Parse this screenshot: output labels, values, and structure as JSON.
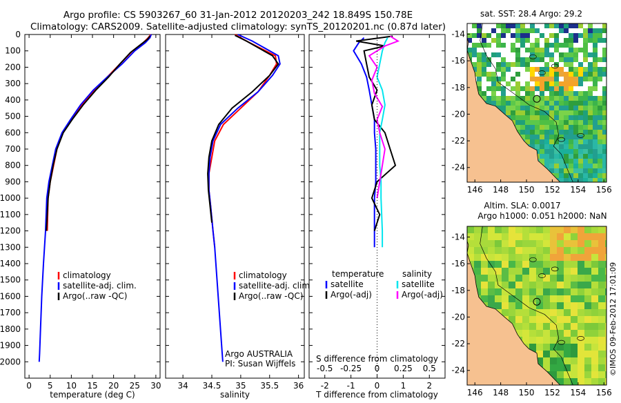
{
  "header": {
    "line1": "Argo profile: CS 5903267_60 31-Jan-2012 20120203_242 18.849S 150.78E",
    "line2": "Climatology: CARS2009. Satellite-adjusted climatology: synTS_20120201.nc (0.87d later)"
  },
  "colors": {
    "climatology": "#ff0000",
    "satellite": "#0000ff",
    "argo": "#000000",
    "sal_satellite": "#00e5ee",
    "sal_argo": "#ff00ff",
    "land": "#f6c190"
  },
  "chart_data": [
    {
      "id": "temperature",
      "type": "line",
      "xlabel": "temperature (deg C)",
      "ylabel": "",
      "xlim": [
        -1,
        31
      ],
      "ylim": [
        2100,
        0
      ],
      "xticks": [
        0,
        5,
        10,
        15,
        20,
        25,
        30
      ],
      "xticklabels": [
        "0",
        "5",
        "10",
        "15",
        "20",
        "25",
        "30"
      ],
      "yticks": [
        0,
        100,
        200,
        300,
        400,
        500,
        600,
        700,
        800,
        900,
        1000,
        1100,
        1200,
        1300,
        1400,
        1500,
        1600,
        1700,
        1800,
        1900,
        2000
      ],
      "yticklabels": [
        "0",
        "100",
        "200",
        "300",
        "400",
        "500",
        "600",
        "700",
        "800",
        "900",
        "1000",
        "1100",
        "1200",
        "1300",
        "1400",
        "1500",
        "1600",
        "1700",
        "1800",
        "1900",
        "2000"
      ],
      "legend": [
        "climatology",
        "satellite-adj. clim.",
        "Argo(..raw -QC)"
      ],
      "series": [
        {
          "name": "climatology",
          "color": "#ff0000",
          "x": [
            28.8,
            28.2,
            27.0,
            24.5,
            21.5,
            18.5,
            15.5,
            12.5,
            10.0,
            8.0,
            6.6,
            5.8,
            5.0,
            4.5,
            4.3
          ],
          "y": [
            0,
            20,
            50,
            100,
            180,
            260,
            340,
            430,
            520,
            600,
            700,
            800,
            900,
            1000,
            1200
          ]
        },
        {
          "name": "satellite-adj. clim.",
          "color": "#0000ff",
          "x": [
            28.9,
            28.6,
            27.5,
            25.0,
            22.0,
            18.5,
            15.2,
            12.2,
            9.8,
            7.8,
            6.3,
            5.5,
            4.7,
            4.2,
            3.9,
            3.4,
            3.0,
            2.7,
            2.5,
            2.4
          ],
          "y": [
            0,
            20,
            50,
            100,
            180,
            260,
            340,
            430,
            520,
            600,
            700,
            800,
            900,
            1000,
            1200,
            1400,
            1600,
            1800,
            1950,
            2000
          ]
        },
        {
          "name": "Argo(..raw -QC)",
          "color": "#000000",
          "x": [
            28.6,
            28.0,
            26.5,
            24.0,
            21.5,
            18.8,
            15.8,
            12.8,
            10.2,
            8.1,
            6.6,
            5.7,
            5.0,
            4.5,
            4.1
          ],
          "y": [
            10,
            30,
            60,
            110,
            180,
            260,
            340,
            430,
            520,
            600,
            700,
            800,
            900,
            1000,
            1200
          ]
        }
      ]
    },
    {
      "id": "salinity",
      "type": "line",
      "xlabel": "salinity",
      "xlim": [
        33.7,
        36.1
      ],
      "ylim": [
        2100,
        0
      ],
      "xticks": [
        34,
        34.5,
        35,
        35.5,
        36
      ],
      "xticklabels": [
        "34",
        "34.5",
        "35",
        "35.5",
        "36"
      ],
      "legend": [
        "climatology",
        "satellite-adj. clim.",
        "Argo(..raw -QC)"
      ],
      "annotation": [
        "Argo AUSTRALIA",
        "PI: Susan Wijffels"
      ],
      "series": [
        {
          "name": "climatology",
          "color": "#ff0000",
          "x": [
            34.9,
            35.1,
            35.6,
            35.62,
            35.5,
            35.3,
            35.0,
            34.7,
            34.55,
            34.5,
            34.45,
            34.45,
            34.48,
            34.52,
            34.55
          ],
          "y": [
            0,
            40,
            130,
            180,
            250,
            350,
            450,
            550,
            650,
            750,
            850,
            950,
            1050,
            1200,
            1300
          ]
        },
        {
          "name": "satellite-adj. clim.",
          "color": "#0000ff",
          "x": [
            34.95,
            35.2,
            35.65,
            35.68,
            35.55,
            35.3,
            34.95,
            34.65,
            34.52,
            34.47,
            34.45,
            34.45,
            34.48,
            34.52,
            34.55,
            34.58,
            34.61,
            34.64,
            34.67,
            34.69
          ],
          "y": [
            0,
            40,
            130,
            180,
            250,
            350,
            450,
            550,
            650,
            750,
            850,
            950,
            1050,
            1200,
            1300,
            1450,
            1600,
            1750,
            1900,
            2000
          ]
        },
        {
          "name": "Argo(..raw -QC)",
          "color": "#000000",
          "x": [
            34.9,
            35.1,
            35.55,
            35.65,
            35.5,
            35.2,
            34.85,
            34.62,
            34.5,
            34.45,
            34.43,
            34.44,
            34.47,
            34.5
          ],
          "y": [
            5,
            40,
            130,
            180,
            250,
            350,
            450,
            550,
            650,
            750,
            850,
            950,
            1050,
            1150
          ]
        }
      ]
    },
    {
      "id": "difference",
      "type": "line",
      "xlabel": "T difference from climatology",
      "xlabel2": "S difference from climatology",
      "xlim": [
        -2.6,
        2.6
      ],
      "ylim": [
        2100,
        0
      ],
      "xticks": [
        -2,
        -1,
        0,
        1,
        2
      ],
      "xticklabels": [
        "-2",
        "-1",
        "0",
        "1",
        "2"
      ],
      "top_tick_values": [
        -2,
        -1,
        0,
        1,
        2
      ],
      "top_ticklabels": [
        "-0.5",
        "-0.25",
        "0",
        "0.25",
        "0.5"
      ],
      "legend_headers": [
        "temperature",
        "salinity"
      ],
      "legend": [
        "satellite",
        "Argo(-adj)",
        "satellite",
        "Argo(-adj)"
      ],
      "zero_line": 0,
      "series": [
        {
          "name": "T satellite",
          "color": "#0000ff",
          "x": [
            -0.5,
            -0.7,
            -0.9,
            -0.6,
            -0.4,
            -0.3,
            -0.2,
            -0.1,
            -0.1,
            -0.05,
            -0.05,
            -0.05,
            -0.1,
            -0.1,
            -0.1,
            -0.1
          ],
          "y": [
            20,
            50,
            100,
            180,
            260,
            340,
            430,
            520,
            600,
            700,
            800,
            900,
            1000,
            1100,
            1200,
            1300
          ]
        },
        {
          "name": "T Argo(-adj)",
          "color": "#000000",
          "x": [
            0.6,
            -0.8,
            0.3,
            -0.5,
            -0.4,
            -0.3,
            0.0,
            -0.2,
            -0.1,
            0.3,
            0.5,
            0.7,
            0.0,
            -0.2,
            0.1,
            0.0,
            -0.1
          ],
          "y": [
            10,
            40,
            70,
            100,
            180,
            260,
            340,
            430,
            520,
            600,
            700,
            800,
            900,
            1000,
            1100,
            1150,
            1200
          ]
        },
        {
          "name": "S satellite",
          "color": "#00e5ee",
          "x": [
            0.4,
            0.3,
            0.2,
            0.1,
            0.0,
            0.2,
            0.3,
            0.2,
            0.1,
            0.1,
            0.1,
            0.15,
            0.15,
            0.2,
            0.2
          ],
          "y": [
            20,
            50,
            100,
            180,
            260,
            340,
            430,
            520,
            600,
            700,
            800,
            900,
            1000,
            1200,
            1300
          ]
        },
        {
          "name": "S Argo(-adj)",
          "color": "#ff00ff",
          "x": [
            0.5,
            0.8,
            0.3,
            -0.3,
            0.0,
            -0.2,
            -0.1,
            0.2,
            0.0,
            0.1,
            0.3,
            0.2,
            0.1,
            0.0
          ],
          "y": [
            10,
            40,
            70,
            130,
            200,
            280,
            360,
            440,
            520,
            600,
            700,
            800,
            900,
            1000
          ]
        }
      ]
    },
    {
      "id": "sst_map",
      "type": "heatmap",
      "title": "sat. SST: 28.4  Argo: 29.2",
      "xticks": [
        146,
        148,
        150,
        152,
        154,
        156
      ],
      "yticks": [
        -14,
        -16,
        -18,
        -20,
        -22,
        -24
      ],
      "xlim": [
        145.4,
        156.2
      ],
      "ylim": [
        -13.2,
        -25.1
      ],
      "argo_position": [
        150.8,
        -18.85
      ]
    },
    {
      "id": "sla_map",
      "type": "heatmap",
      "title": "Altim. SLA: 0.0017",
      "subtitle": "Argo h1000: 0.051 h2000: NaN",
      "xticks": [
        146,
        148,
        150,
        152,
        154,
        156
      ],
      "yticks": [
        -14,
        -16,
        -18,
        -20,
        -22,
        -24
      ],
      "xlim": [
        145.4,
        156.2
      ],
      "ylim": [
        -13.2,
        -25.1
      ],
      "argo_position": [
        150.8,
        -18.85
      ]
    }
  ],
  "footer": {
    "stamp": "©IMOS 09-Feb-2012 17:01:09"
  }
}
